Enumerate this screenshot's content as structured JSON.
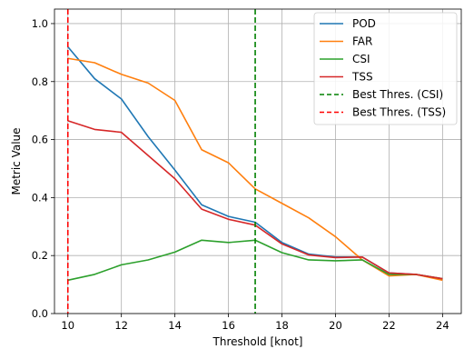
{
  "chart_data": {
    "type": "line",
    "title": "",
    "xlabel": "Threshold [knot]",
    "ylabel": "Metric Value",
    "xlim": [
      9.5,
      24.7
    ],
    "ylim": [
      0.0,
      1.05
    ],
    "xticks": [
      10,
      12,
      14,
      16,
      18,
      20,
      22,
      24
    ],
    "yticks": [
      0.0,
      0.2,
      0.4,
      0.6,
      0.8,
      1.0
    ],
    "xtick_labels": [
      "10",
      "12",
      "14",
      "16",
      "18",
      "20",
      "22",
      "24"
    ],
    "ytick_labels": [
      "0.0",
      "0.2",
      "0.4",
      "0.6",
      "0.8",
      "1.0"
    ],
    "grid": true,
    "legend_position": "top-right",
    "x": [
      10,
      11,
      12,
      13,
      14,
      15,
      16,
      17,
      18,
      19,
      20,
      21,
      22,
      23,
      24
    ],
    "series": [
      {
        "name": "POD",
        "color": "#1f77b4",
        "values": [
          0.92,
          0.81,
          0.74,
          0.61,
          0.495,
          0.375,
          0.335,
          0.315,
          0.245,
          0.205,
          0.195,
          0.195,
          0.14,
          0.135,
          0.12
        ]
      },
      {
        "name": "FAR",
        "color": "#ff7f0e",
        "values": [
          0.88,
          0.865,
          0.825,
          0.795,
          0.735,
          0.565,
          0.52,
          0.43,
          0.38,
          0.33,
          0.265,
          0.185,
          0.13,
          0.135,
          0.115
        ]
      },
      {
        "name": "CSI",
        "color": "#2ca02c",
        "values": [
          0.115,
          0.135,
          0.168,
          0.185,
          0.212,
          0.253,
          0.245,
          0.253,
          0.21,
          0.185,
          0.182,
          0.185,
          0.135,
          0.135,
          0.12
        ]
      },
      {
        "name": "TSS",
        "color": "#d62728",
        "values": [
          0.665,
          0.635,
          0.625,
          0.545,
          0.465,
          0.36,
          0.325,
          0.305,
          0.24,
          0.202,
          0.193,
          0.195,
          0.14,
          0.135,
          0.12
        ]
      }
    ],
    "reference_lines": [
      {
        "name": "Best Thres. (CSI)",
        "color": "#008000",
        "x": 17,
        "style": "dashed"
      },
      {
        "name": "Best Thres. (TSS)",
        "color": "#ff0000",
        "x": 10,
        "style": "dashed"
      }
    ]
  }
}
